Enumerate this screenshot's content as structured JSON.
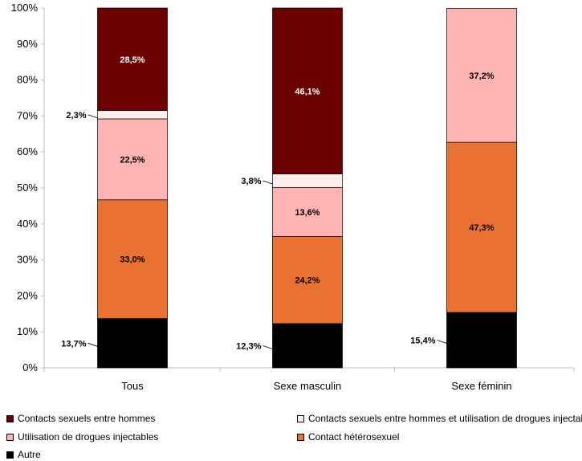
{
  "chart_data": {
    "type": "bar",
    "stacked": true,
    "categories": [
      "Tous",
      "Sexe masculin",
      "Sexe féminin"
    ],
    "ylim": [
      0,
      100
    ],
    "yticks": [
      "0%",
      "10%",
      "20%",
      "30%",
      "40%",
      "50%",
      "60%",
      "70%",
      "80%",
      "90%",
      "100%"
    ],
    "series": [
      {
        "name": "Autre",
        "color": "#000000",
        "label_color": "#000000",
        "values": [
          13.7,
          12.3,
          15.4
        ],
        "labels": [
          "13,7%",
          "12,3%",
          "15,4%"
        ],
        "label_outside": true
      },
      {
        "name": "Contact hétérosexuel",
        "color": "#E97132",
        "label_color": "#000000",
        "values": [
          33.0,
          24.2,
          47.3
        ],
        "labels": [
          "33,0%",
          "24,2%",
          "47,3%"
        ]
      },
      {
        "name": "Utilisation de drogues injectables",
        "color": "#FFB3B3",
        "label_color": "#000000",
        "values": [
          22.5,
          13.6,
          37.2
        ],
        "labels": [
          "22,5%",
          "13,6%",
          "37,2%"
        ]
      },
      {
        "name": "Contacts sexuels entre hommes et utilisation de drogues injectables",
        "color": "#FDEDED",
        "label_color": "#000000",
        "values": [
          2.3,
          3.8,
          0
        ],
        "labels": [
          "2,3%",
          "3,8%",
          ""
        ],
        "label_outside": true
      },
      {
        "name": "Contacts sexuels entre hommes",
        "color": "#6B0000",
        "label_color": "#FFFFFF",
        "values": [
          28.5,
          46.1,
          0
        ],
        "labels": [
          "28,5%",
          "46,1%",
          ""
        ]
      }
    ],
    "legend": {
      "placement": "bottom",
      "items": [
        {
          "label": "Contacts sexuels entre hommes",
          "color": "#6B0000"
        },
        {
          "label": "Contacts sexuels entre hommes et utilisation de drogues injectables",
          "color": "#FDEDED"
        },
        {
          "label": "Utilisation de drogues injectables",
          "color": "#FFB3B3"
        },
        {
          "label": "Contact hétérosexuel",
          "color": "#E97132"
        },
        {
          "label": "Autre",
          "color": "#000000"
        }
      ]
    },
    "grid": false
  }
}
